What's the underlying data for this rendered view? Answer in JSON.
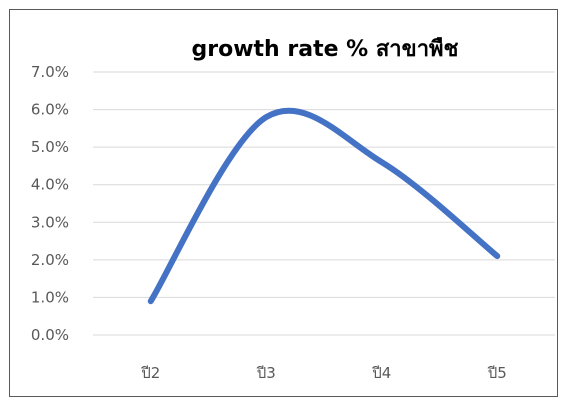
{
  "chart_data": {
    "type": "line",
    "title": "growth  rate % สาขาพืช",
    "categories": [
      "ปี2",
      "ปี3",
      "ปี4",
      "ปี5"
    ],
    "series": [
      {
        "values": [
          0.9,
          5.8,
          4.6,
          2.1
        ]
      }
    ],
    "ylim": [
      0,
      7
    ],
    "y_ticks": [
      "0.0%",
      "1.0%",
      "2.0%",
      "3.0%",
      "4.0%",
      "5.0%",
      "6.0%",
      "7.0%"
    ],
    "grid": true,
    "line_color": "#4472C4",
    "smooth": true
  }
}
